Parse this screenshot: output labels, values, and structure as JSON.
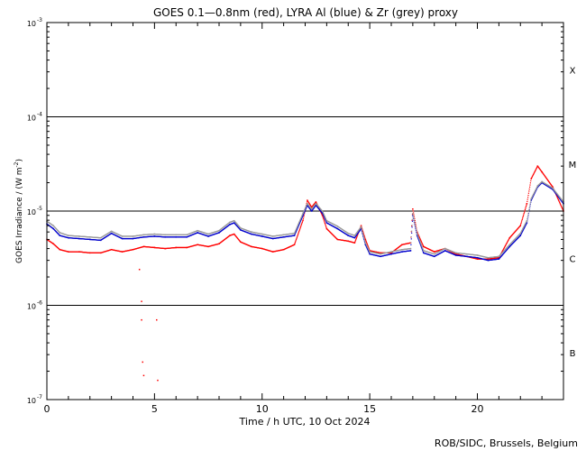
{
  "chart_data": {
    "type": "line",
    "title": "GOES 0.1—0.8nm (red), LYRA Al (blue) & Zr (grey) proxy",
    "xlabel": "Time / h UTC, 10 Oct 2024",
    "ylabel_main": "GOES Irradiance / (W m",
    "ylabel_exp": "-2",
    "ylabel_end": ")",
    "xlim": [
      0,
      24
    ],
    "ylim": [
      1e-07,
      0.001
    ],
    "yscale": "log",
    "x_ticks": [
      {
        "v": 0,
        "label": "0"
      },
      {
        "v": 5,
        "label": "5"
      },
      {
        "v": 10,
        "label": "10"
      },
      {
        "v": 15,
        "label": "15"
      },
      {
        "v": 20,
        "label": "20"
      }
    ],
    "y_ticks": [
      {
        "exp": -7,
        "label": "10",
        "sup": "-7"
      },
      {
        "exp": -6,
        "label": "10",
        "sup": "-6"
      },
      {
        "exp": -5,
        "label": "10",
        "sup": "-5"
      },
      {
        "exp": -4,
        "label": "10",
        "sup": "-4"
      },
      {
        "exp": -3,
        "label": "10",
        "sup": "-3"
      }
    ],
    "flare_class_lines": [
      1e-06,
      1e-05,
      0.0001
    ],
    "flare_classes": [
      {
        "label": "X",
        "exp": -3.5
      },
      {
        "label": "M",
        "exp": -4.5
      },
      {
        "label": "C",
        "exp": -5.5
      },
      {
        "label": "B",
        "exp": -6.5
      }
    ],
    "series": [
      {
        "name": "GOES 0.1-0.8nm",
        "color": "#ff0000",
        "x": [
          0,
          0.3,
          0.6,
          1,
          1.5,
          2,
          2.5,
          3,
          3.5,
          4,
          4.5,
          5,
          5.5,
          6,
          6.5,
          7,
          7.5,
          8,
          8.5,
          8.7,
          9,
          9.5,
          10,
          10.5,
          11,
          11.5,
          11.9,
          12.1,
          12.3,
          12.5,
          12.8,
          13,
          13.5,
          14,
          14.3,
          14.6,
          14.8,
          15,
          15.5,
          16,
          16.5,
          16.9,
          17.0,
          17.2,
          17.5,
          18,
          18.5,
          19,
          19.5,
          20,
          20.5,
          21,
          21.5,
          22,
          22.3,
          22.5,
          22.8,
          23,
          23.5,
          24
        ],
        "y": [
          5e-06,
          4.5e-06,
          3.9e-06,
          3.7e-06,
          3.7e-06,
          3.6e-06,
          3.6e-06,
          3.9e-06,
          3.7e-06,
          3.9e-06,
          4.2e-06,
          4.1e-06,
          4e-06,
          4.1e-06,
          4.1e-06,
          4.4e-06,
          4.2e-06,
          4.5e-06,
          5.5e-06,
          5.7e-06,
          4.7e-06,
          4.2e-06,
          4e-06,
          3.7e-06,
          3.9e-06,
          4.4e-06,
          8e-06,
          1.3e-05,
          1.1e-05,
          1.25e-05,
          9e-06,
          6.5e-06,
          5e-06,
          4.8e-06,
          4.6e-06,
          7e-06,
          5e-06,
          3.8e-06,
          3.6e-06,
          3.6e-06,
          4.4e-06,
          4.6e-06,
          1.05e-05,
          6e-06,
          4.2e-06,
          3.7e-06,
          4e-06,
          3.5e-06,
          3.3e-06,
          3.1e-06,
          3.1e-06,
          3.2e-06,
          5.2e-06,
          7e-06,
          1.2e-05,
          2.2e-05,
          3e-05,
          2.6e-05,
          1.8e-05,
          1e-05
        ]
      },
      {
        "name": "LYRA Al",
        "color": "#0000cc",
        "x": [
          0,
          0.3,
          0.6,
          1,
          1.5,
          2,
          2.5,
          3,
          3.5,
          4,
          4.5,
          5,
          5.5,
          6,
          6.5,
          7,
          7.5,
          8,
          8.5,
          8.7,
          9,
          9.5,
          10,
          10.5,
          11,
          11.5,
          11.9,
          12.1,
          12.3,
          12.5,
          12.8,
          13,
          13.5,
          14,
          14.3,
          14.6,
          14.8,
          15,
          15.5,
          16,
          16.5,
          16.9,
          17.0,
          17.2,
          17.5,
          18,
          18.5,
          19,
          19.5,
          20,
          20.5,
          21,
          21.5,
          22,
          22.3,
          22.5,
          22.8,
          23,
          23.5,
          24
        ],
        "y": [
          7.3e-06,
          6.5e-06,
          5.5e-06,
          5.2e-06,
          5.1e-06,
          5e-06,
          4.9e-06,
          5.8e-06,
          5.1e-06,
          5.1e-06,
          5.3e-06,
          5.4e-06,
          5.3e-06,
          5.3e-06,
          5.3e-06,
          5.9e-06,
          5.4e-06,
          5.9e-06,
          7.2e-06,
          7.5e-06,
          6.3e-06,
          5.7e-06,
          5.4e-06,
          5.1e-06,
          5.3e-06,
          5.5e-06,
          9e-06,
          1.15e-05,
          1e-05,
          1.15e-05,
          9.5e-06,
          7.5e-06,
          6.5e-06,
          5.5e-06,
          5.2e-06,
          6.5e-06,
          4.4e-06,
          3.5e-06,
          3.3e-06,
          3.5e-06,
          3.7e-06,
          3.8e-06,
          9e-06,
          5.5e-06,
          3.6e-06,
          3.3e-06,
          3.8e-06,
          3.4e-06,
          3.3e-06,
          3.2e-06,
          3e-06,
          3.1e-06,
          4.2e-06,
          5.5e-06,
          7.5e-06,
          1.3e-05,
          1.8e-05,
          2e-05,
          1.7e-05,
          1.2e-05
        ]
      },
      {
        "name": "LYRA Zr",
        "color": "#999999",
        "x": [
          0,
          0.3,
          0.6,
          1,
          1.5,
          2,
          2.5,
          3,
          3.5,
          4,
          4.5,
          5,
          5.5,
          6,
          6.5,
          7,
          7.5,
          8,
          8.5,
          8.7,
          9,
          9.5,
          10,
          10.5,
          11,
          11.5,
          11.9,
          12.1,
          12.3,
          12.5,
          12.8,
          13,
          13.5,
          14,
          14.3,
          14.6,
          14.8,
          15,
          15.5,
          16,
          16.5,
          16.9,
          17.0,
          17.2,
          17.5,
          18,
          18.5,
          19,
          19.5,
          20,
          20.5,
          21,
          21.5,
          22,
          22.3,
          22.5,
          22.8,
          23,
          23.5,
          24
        ],
        "y": [
          7.8e-06,
          7e-06,
          5.9e-06,
          5.5e-06,
          5.4e-06,
          5.3e-06,
          5.2e-06,
          6.1e-06,
          5.4e-06,
          5.4e-06,
          5.6e-06,
          5.7e-06,
          5.6e-06,
          5.6e-06,
          5.6e-06,
          6.2e-06,
          5.7e-06,
          6.2e-06,
          7.6e-06,
          7.9e-06,
          6.6e-06,
          6e-06,
          5.7e-06,
          5.4e-06,
          5.6e-06,
          5.8e-06,
          9.5e-06,
          1.2e-05,
          1.05e-05,
          1.2e-05,
          1e-05,
          7.9e-06,
          6.9e-06,
          5.8e-06,
          5.5e-06,
          6.8e-06,
          4.6e-06,
          3.7e-06,
          3.5e-06,
          3.7e-06,
          3.9e-06,
          4e-06,
          9.4e-06,
          5.8e-06,
          3.8e-06,
          3.5e-06,
          4e-06,
          3.6e-06,
          3.5e-06,
          3.4e-06,
          3.2e-06,
          3.3e-06,
          4.4e-06,
          5.8e-06,
          7.9e-06,
          1.35e-05,
          1.85e-05,
          2.05e-05,
          1.75e-05,
          1.25e-05
        ]
      },
      {
        "name": "GOES 0.1-0.8nm dropouts",
        "color": "#ff0000",
        "x": [
          4.3,
          4.4,
          4.4,
          4.45,
          4.5,
          5.1,
          5.15
        ],
        "y": [
          2.4e-06,
          1.1e-06,
          7e-07,
          2.5e-07,
          1.8e-07,
          7e-07,
          1.6e-07
        ]
      }
    ]
  },
  "credit": "ROB/SIDC, Brussels, Belgium"
}
